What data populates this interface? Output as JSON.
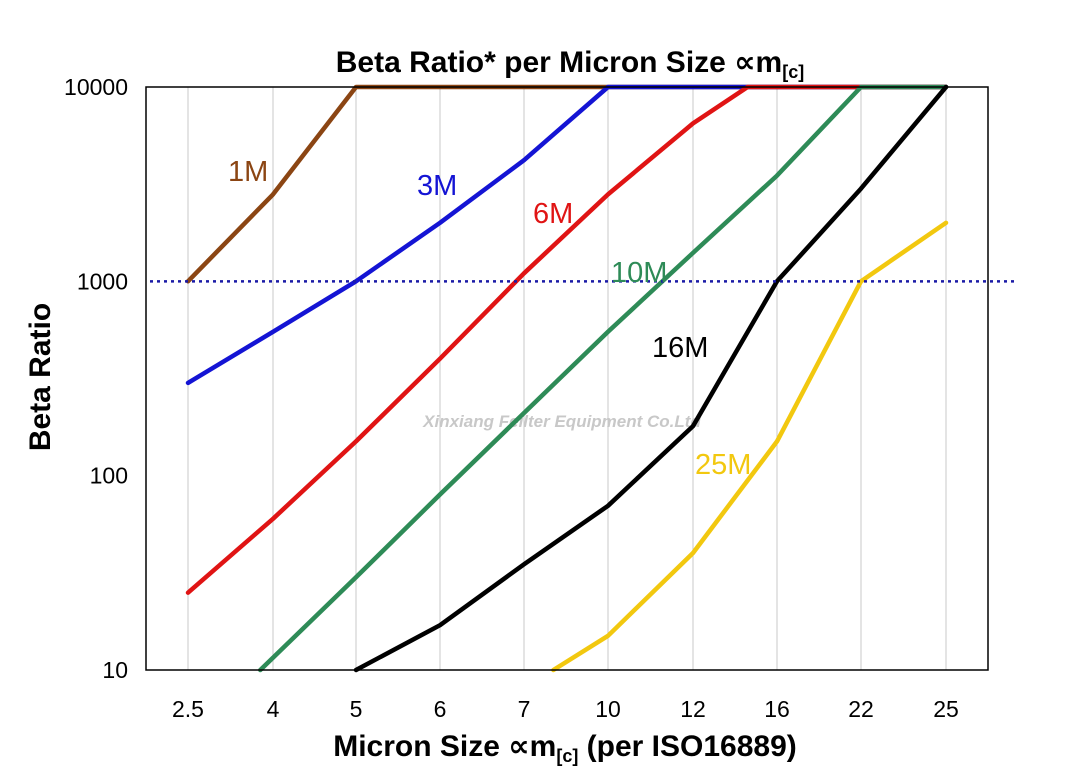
{
  "chart_data": {
    "type": "line",
    "title_main": "Beta Ratio* per Micron Size ",
    "title_unit": "∝m",
    "title_sub": "[c]",
    "xlabel_main": "Micron Size ",
    "xlabel_unit": "∝m",
    "xlabel_sub": "[c]",
    "xlabel_tail": " (per ISO16889)",
    "ylabel": "Beta Ratio",
    "x_scale": "categorical",
    "categories": [
      "2.5",
      "4",
      "5",
      "6",
      "7",
      "10",
      "12",
      "16",
      "22",
      "25"
    ],
    "y_scale": "log",
    "ylim": [
      10,
      10000
    ],
    "y_ticks": [
      "10",
      "100",
      "1000",
      "10000"
    ],
    "grid": "vertical",
    "reference_line": {
      "value": 1000,
      "style": "dotted",
      "color": "#1a1aa6"
    },
    "watermark": "Xinxiang Feilter Equipment Co.Ltd",
    "series": [
      {
        "name": "1M",
        "color": "#8b4513",
        "points": [
          [
            0,
            1000
          ],
          [
            1,
            2800
          ],
          [
            2,
            10000
          ],
          [
            9,
            10000
          ]
        ]
      },
      {
        "name": "3M",
        "color": "#1414d4",
        "points": [
          [
            0,
            300
          ],
          [
            1,
            550
          ],
          [
            2,
            1000
          ],
          [
            3,
            2000
          ],
          [
            4,
            4200
          ],
          [
            5,
            10000
          ],
          [
            9,
            10000
          ]
        ]
      },
      {
        "name": "6M",
        "color": "#e01414",
        "points": [
          [
            0,
            25
          ],
          [
            1,
            60
          ],
          [
            2,
            150
          ],
          [
            3,
            400
          ],
          [
            4,
            1100
          ],
          [
            5,
            2800
          ],
          [
            6,
            6500
          ],
          [
            6.65,
            10000
          ],
          [
            9,
            10000
          ]
        ]
      },
      {
        "name": "10M",
        "color": "#2e8b57",
        "points": [
          [
            0.85,
            10
          ],
          [
            2,
            30
          ],
          [
            3,
            80
          ],
          [
            4,
            210
          ],
          [
            5,
            550
          ],
          [
            6,
            1400
          ],
          [
            7,
            3500
          ],
          [
            8,
            10000
          ],
          [
            9,
            10000
          ]
        ]
      },
      {
        "name": "16M",
        "color": "#000000",
        "points": [
          [
            2,
            10
          ],
          [
            3,
            17
          ],
          [
            4,
            35
          ],
          [
            5,
            70
          ],
          [
            6,
            180
          ],
          [
            7,
            1000
          ],
          [
            8,
            3000
          ],
          [
            9,
            10000
          ]
        ]
      },
      {
        "name": "25M",
        "color": "#f2c80f",
        "points": [
          [
            4.35,
            10
          ],
          [
            5,
            15
          ],
          [
            6,
            40
          ],
          [
            7,
            150
          ],
          [
            8,
            1000
          ],
          [
            9,
            2000
          ]
        ]
      }
    ]
  }
}
